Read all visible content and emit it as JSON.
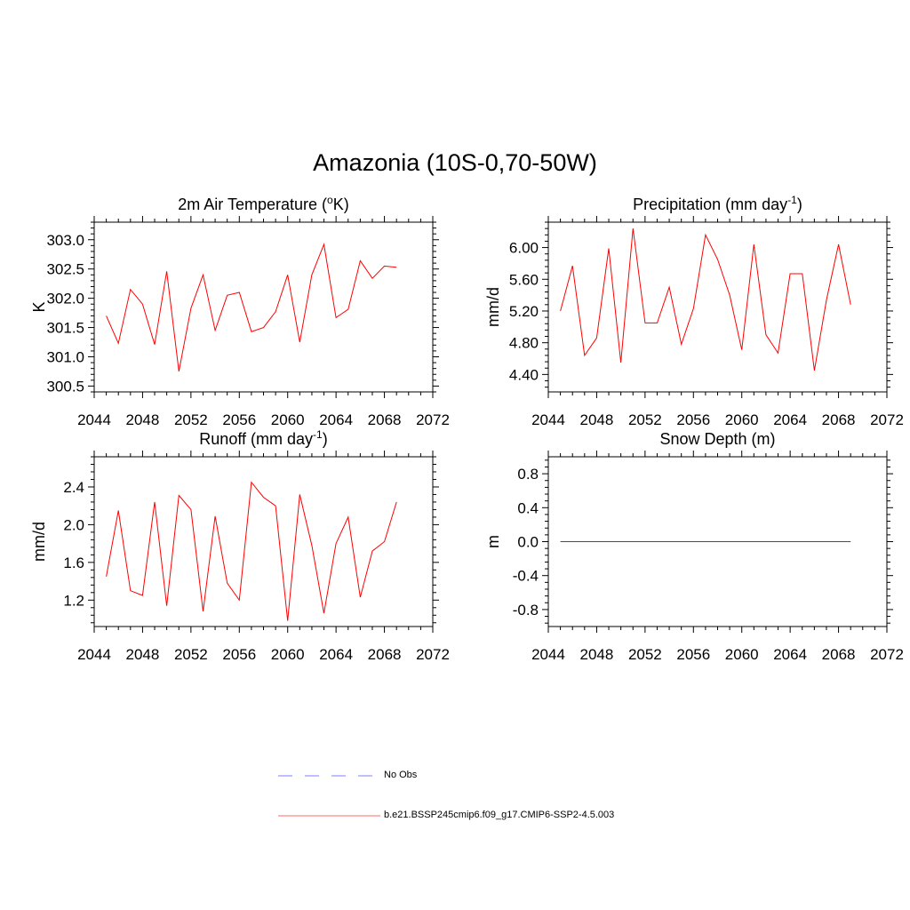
{
  "figure": {
    "title": "Amazonia (10S-0,70-50W)"
  },
  "legend": [
    {
      "label": "No Obs",
      "color": "#9999ff",
      "style": "dashed"
    },
    {
      "label": "b.e21.BSSP245cmip6.f09_g17.CMIP6-SSP2-4.5.003",
      "color": "#ff8888",
      "style": "solid"
    }
  ],
  "chart_data": [
    {
      "type": "line",
      "title": "2m Air Temperature (",
      "title_sup": "o",
      "title_tail": "K)",
      "ylabel": "K",
      "xlim": [
        2044,
        2072
      ],
      "ylim": [
        300.4,
        303.3
      ],
      "xticks": [
        2044,
        2048,
        2052,
        2056,
        2060,
        2064,
        2068,
        2072
      ],
      "yticks": [
        300.5,
        301.0,
        301.5,
        302.0,
        302.5,
        303.0
      ],
      "ytick_labels": [
        "300.5",
        "301.0",
        "301.5",
        "302.0",
        "302.5",
        "303.0"
      ],
      "series": [
        {
          "name": "b.e21.BSSP245cmip6.f09_g17.CMIP6-SSP2-4.5.003",
          "color": "#ff0000",
          "x": [
            2045,
            2046,
            2047,
            2048,
            2049,
            2050,
            2051,
            2052,
            2053,
            2054,
            2055,
            2056,
            2057,
            2058,
            2059,
            2060,
            2061,
            2062,
            2063,
            2064,
            2065,
            2066,
            2067,
            2068,
            2069
          ],
          "values": [
            301.7,
            301.23,
            302.15,
            301.9,
            301.21,
            302.46,
            300.75,
            301.83,
            302.4,
            301.45,
            302.05,
            302.1,
            301.43,
            301.5,
            301.77,
            302.4,
            301.25,
            302.4,
            302.92,
            301.67,
            301.81,
            302.64,
            302.34,
            302.55,
            302.53
          ]
        }
      ]
    },
    {
      "type": "line",
      "title": "Precipitation (mm day",
      "title_sup": "-1",
      "title_tail": ")",
      "ylabel": "mm/d",
      "xlim": [
        2044,
        2072
      ],
      "ylim": [
        4.18,
        6.32
      ],
      "xticks": [
        2044,
        2048,
        2052,
        2056,
        2060,
        2064,
        2068,
        2072
      ],
      "yticks": [
        4.4,
        4.8,
        5.2,
        5.6,
        6.0
      ],
      "ytick_labels": [
        "4.40",
        "4.80",
        "5.20",
        "5.60",
        "6.00"
      ],
      "series": [
        {
          "name": "b.e21.BSSP245cmip6.f09_g17.CMIP6-SSP2-4.5.003",
          "color": "#ff0000",
          "x": [
            2045,
            2046,
            2047,
            2048,
            2049,
            2050,
            2051,
            2052,
            2053,
            2054,
            2055,
            2056,
            2057,
            2058,
            2059,
            2060,
            2061,
            2062,
            2063,
            2064,
            2065,
            2066,
            2067,
            2068,
            2069
          ],
          "values": [
            5.2,
            5.77,
            4.64,
            4.86,
            5.99,
            4.55,
            6.24,
            5.05,
            5.05,
            5.5,
            4.78,
            5.23,
            6.16,
            5.85,
            5.4,
            4.71,
            6.04,
            4.9,
            4.67,
            5.67,
            5.67,
            4.45,
            5.34,
            6.04,
            5.28
          ]
        }
      ]
    },
    {
      "type": "line",
      "title": "Runoff (mm day",
      "title_sup": "-1",
      "title_tail": ")",
      "ylabel": "mm/d",
      "xlim": [
        2044,
        2072
      ],
      "ylim": [
        0.92,
        2.72
      ],
      "xticks": [
        2044,
        2048,
        2052,
        2056,
        2060,
        2064,
        2068,
        2072
      ],
      "yticks": [
        1.2,
        1.6,
        2.0,
        2.4
      ],
      "ytick_labels": [
        "1.2",
        "1.6",
        "2.0",
        "2.4"
      ],
      "series": [
        {
          "name": "b.e21.BSSP245cmip6.f09_g17.CMIP6-SSP2-4.5.003",
          "color": "#ff0000",
          "x": [
            2045,
            2046,
            2047,
            2048,
            2049,
            2050,
            2051,
            2052,
            2053,
            2054,
            2055,
            2056,
            2057,
            2058,
            2059,
            2060,
            2061,
            2062,
            2063,
            2064,
            2065,
            2066,
            2067,
            2068,
            2069
          ],
          "values": [
            1.45,
            2.15,
            1.3,
            1.25,
            2.24,
            1.14,
            2.31,
            2.16,
            1.08,
            2.09,
            1.38,
            1.2,
            2.45,
            2.29,
            2.2,
            0.98,
            2.32,
            1.78,
            1.06,
            1.8,
            2.08,
            1.23,
            1.72,
            1.82,
            2.24
          ]
        }
      ]
    },
    {
      "type": "line",
      "title": "Snow Depth (m)",
      "title_sup": "",
      "title_tail": "",
      "ylabel": "m",
      "xlim": [
        2044,
        2072
      ],
      "ylim": [
        -1.0,
        1.0
      ],
      "xticks": [
        2044,
        2048,
        2052,
        2056,
        2060,
        2064,
        2068,
        2072
      ],
      "yticks": [
        -0.8,
        -0.4,
        0.0,
        0.4,
        0.8
      ],
      "ytick_labels": [
        "-0.8",
        "-0.4",
        "0.0",
        "0.4",
        "0.8"
      ],
      "series": [
        {
          "name": "b.e21.BSSP245cmip6.f09_g17.CMIP6-SSP2-4.5.003",
          "color": "#ff0000",
          "x": [
            2045,
            2046,
            2047,
            2048,
            2049,
            2050,
            2051,
            2052,
            2053,
            2054,
            2055,
            2056,
            2057,
            2058,
            2059,
            2060,
            2061,
            2062,
            2063,
            2064,
            2065,
            2066,
            2067,
            2068,
            2069
          ],
          "values": [
            0,
            0,
            0,
            0,
            0,
            0,
            0,
            0,
            0,
            0,
            0,
            0,
            0,
            0,
            0,
            0,
            0,
            0,
            0,
            0,
            0,
            0,
            0,
            0,
            0
          ]
        }
      ]
    }
  ]
}
